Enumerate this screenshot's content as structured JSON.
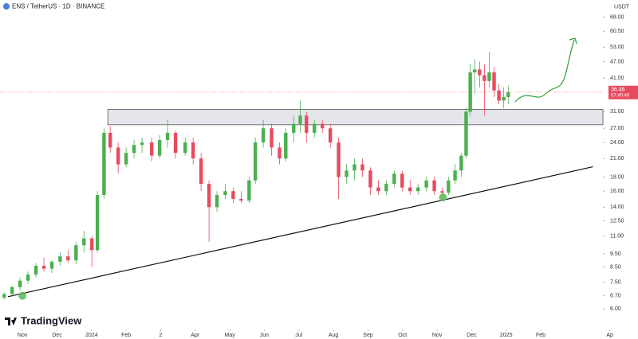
{
  "chart_data": {
    "type": "candlestick",
    "title": "ENS / TetherUS · 1D · BINANCE",
    "currency": "USDT",
    "brand": "TradingView",
    "countdown": "07:40:40",
    "log_scale": true,
    "up_color": "#4caf50",
    "down_color": "#e84a5f",
    "x": [
      -0.53,
      -0.3,
      -0.07,
      0.16,
      0.39,
      0.62,
      0.85,
      1.09,
      1.32,
      1.55,
      1.78,
      2.01,
      2.17,
      2.36,
      2.54,
      2.77,
      3.0,
      3.23,
      3.46,
      3.74,
      3.97,
      4.2,
      4.43,
      4.71,
      4.94,
      5.17,
      5.4,
      5.63,
      5.87,
      6.1,
      6.33,
      6.56,
      6.74,
      6.97,
      7.21,
      7.44,
      7.62,
      7.85,
      8.04,
      8.22,
      8.45,
      8.68,
      8.91,
      9.15,
      9.38,
      9.61,
      9.84,
      10.07,
      10.3,
      10.53,
      10.76,
      10.99,
      11.22,
      11.45,
      11.69,
      11.92,
      12.15,
      12.33,
      12.52,
      12.7,
      12.84,
      12.96,
      13.09,
      13.23,
      13.37,
      13.51,
      13.65,
      13.79,
      13.93,
      14.06
    ],
    "open": [
      6.6,
      6.8,
      7.2,
      7.6,
      8.0,
      8.6,
      8.4,
      8.9,
      9.3,
      9.0,
      10.2,
      10.8,
      9.8,
      15.5,
      26,
      23,
      20,
      22,
      23.5,
      24,
      21.5,
      24.5,
      26,
      22,
      24,
      21,
      17,
      14,
      15.5,
      16,
      15,
      14.8,
      17.5,
      24,
      27,
      23,
      21,
      26,
      28,
      30,
      26,
      28,
      27,
      24,
      18,
      19,
      20,
      19,
      16.5,
      16,
      17,
      18.5,
      16.5,
      16,
      16.5,
      17.5,
      16,
      15.8,
      17.5,
      19,
      21.5,
      31,
      43,
      44,
      42,
      40,
      43,
      37,
      34,
      35
    ],
    "high": [
      6.9,
      7.3,
      7.8,
      8.2,
      8.8,
      9.2,
      9.0,
      9.6,
      9.8,
      10.5,
      11.5,
      11.0,
      16,
      27,
      27.5,
      24,
      23,
      24.5,
      25,
      25,
      25.5,
      29,
      26.5,
      25,
      25,
      22,
      17.5,
      16,
      17,
      16.5,
      16,
      18,
      25,
      29,
      28,
      24,
      27,
      30,
      34,
      31,
      29,
      29,
      28,
      25,
      20,
      21,
      21,
      19.5,
      17.5,
      17.5,
      19,
      19,
      17.5,
      17,
      18,
      18,
      16.5,
      18,
      20,
      22,
      32,
      46,
      48,
      47,
      46,
      51,
      45,
      39,
      38,
      38.5
    ],
    "low": [
      6.5,
      6.7,
      7.0,
      7.4,
      7.8,
      8.2,
      8.1,
      8.6,
      8.8,
      8.7,
      9.6,
      8.5,
      9.6,
      15,
      22,
      18.5,
      19.5,
      21,
      22,
      20.5,
      21,
      23,
      21,
      21.5,
      20,
      16,
      10.5,
      13.5,
      15,
      14.5,
      14.5,
      14.5,
      17,
      23,
      21.5,
      20,
      20.5,
      24,
      26,
      24,
      25,
      26,
      23,
      15,
      17,
      17.5,
      18,
      15.5,
      15.5,
      15.5,
      16.5,
      16,
      15.5,
      15.5,
      16,
      15.5,
      15,
      15.5,
      17,
      18,
      21,
      30,
      36,
      38,
      30,
      38,
      35,
      33,
      32,
      33
    ],
    "close": [
      6.8,
      7.2,
      7.6,
      8.0,
      8.6,
      8.4,
      8.9,
      9.3,
      9.0,
      10.2,
      10.8,
      9.8,
      15.5,
      26,
      23,
      20,
      22,
      23.5,
      24,
      21.5,
      24.5,
      26,
      22,
      24,
      21,
      17,
      14,
      15.5,
      16,
      15,
      14.8,
      17.5,
      24,
      27,
      23,
      21,
      26,
      28,
      30,
      26,
      28,
      27,
      24,
      18,
      19,
      20,
      19,
      16.5,
      16,
      17,
      18.5,
      16.5,
      16,
      16.5,
      17.5,
      16,
      15.8,
      17.5,
      19,
      21.5,
      31,
      43,
      44,
      42,
      40,
      43,
      37,
      34,
      35,
      36.48
    ],
    "zone": {
      "x_start": 2.47,
      "low": 27.8,
      "high": 31.6,
      "color": "#e4e6ec"
    },
    "trendline": {
      "x": [
        -0.42,
        16.51
      ],
      "y": [
        6.65,
        19.6
      ],
      "color": "#111111",
      "touch_points": [
        0,
        12.17
      ],
      "touch_values": [
        6.7,
        15.2
      ]
    },
    "xlim": [
      -0.65,
      16.8
    ],
    "xticks": [
      {
        "value": 0,
        "label": "Nov"
      },
      {
        "value": 1,
        "label": "Dec"
      },
      {
        "value": 2,
        "label": "2024"
      },
      {
        "value": 3,
        "label": "Feb"
      },
      {
        "value": 4,
        "label": "2"
      },
      {
        "value": 5,
        "label": "Apr"
      },
      {
        "value": 6,
        "label": "May"
      },
      {
        "value": 7,
        "label": "Jun"
      },
      {
        "value": 8,
        "label": "Jul"
      },
      {
        "value": 9,
        "label": "Aug"
      },
      {
        "value": 10,
        "label": "Sep"
      },
      {
        "value": 11,
        "label": "Oct"
      },
      {
        "value": 12,
        "label": "Nov"
      },
      {
        "value": 13,
        "label": "Dec"
      },
      {
        "value": 14,
        "label": "2025"
      },
      {
        "value": 15,
        "label": "Feb"
      },
      {
        "value": 17,
        "label": "Ap"
      }
    ],
    "ylim": [
      5.2,
      78.5
    ],
    "yticks": [
      {
        "value": 6,
        "label": "6.00"
      },
      {
        "value": 6.7,
        "label": "6.70"
      },
      {
        "value": 7.5,
        "label": "7.50"
      },
      {
        "value": 8.5,
        "label": "8.50"
      },
      {
        "value": 9.5,
        "label": "9.50"
      },
      {
        "value": 11,
        "label": "11.00"
      },
      {
        "value": 12.5,
        "label": "12.50"
      },
      {
        "value": 14,
        "label": "14.00"
      },
      {
        "value": 16,
        "label": "16.00"
      },
      {
        "value": 18,
        "label": "18.00"
      },
      {
        "value": 21,
        "label": "21.00"
      },
      {
        "value": 24,
        "label": "24.00"
      },
      {
        "value": 27,
        "label": "27.00"
      },
      {
        "value": 31,
        "label": "31.00"
      },
      {
        "value": 41,
        "label": "41.00"
      },
      {
        "value": 47,
        "label": "47.00"
      },
      {
        "value": 53,
        "label": "53.00"
      },
      {
        "value": 60.5,
        "label": "60.50"
      },
      {
        "value": 68,
        "label": "68.00"
      }
    ]
  }
}
